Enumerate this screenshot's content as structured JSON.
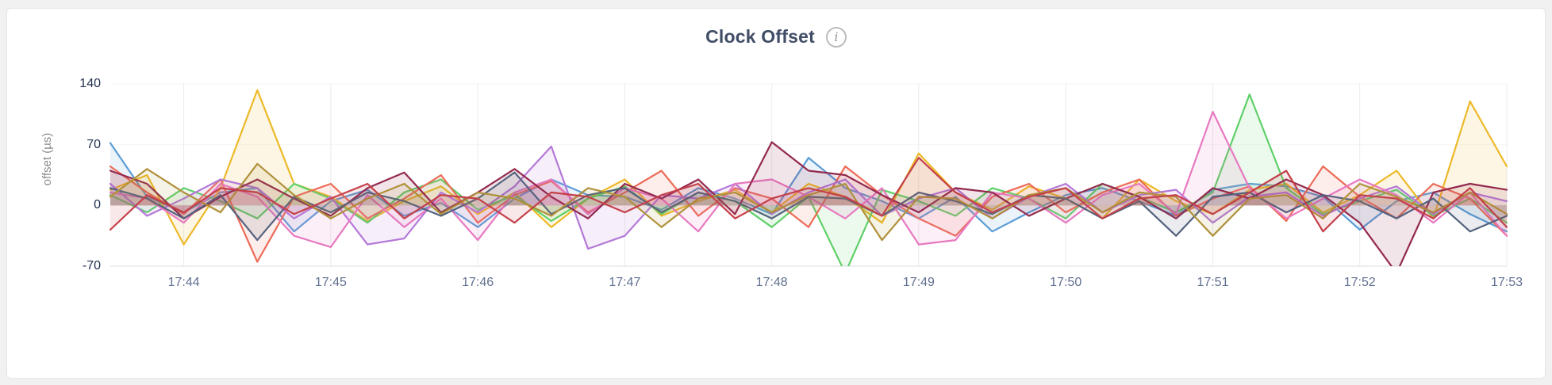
{
  "icons": {
    "info_glyph": "i"
  },
  "colors": {
    "page_bg": "#f2f1f2",
    "card_bg": "#ffffff",
    "title": "#414d66",
    "y_tick_label": "#223050",
    "x_tick_label": "#60708f",
    "grid": "#ebebeb",
    "axis": "#d9dde4"
  },
  "chart_data": {
    "type": "line",
    "title": "Clock Offset",
    "xlabel": "",
    "ylabel": "offset (µs)",
    "ylim": [
      -70,
      140
    ],
    "y_ticks": [
      140,
      70,
      0,
      -70
    ],
    "grid": true,
    "legend": "none",
    "fill_opacity": 0.12,
    "line_width": 2.2,
    "x_ticks": [
      {
        "label": "17:44",
        "index": 2
      },
      {
        "label": "17:45",
        "index": 6
      },
      {
        "label": "17:46",
        "index": 10
      },
      {
        "label": "17:47",
        "index": 14
      },
      {
        "label": "17:48",
        "index": 18
      },
      {
        "label": "17:49",
        "index": 22
      },
      {
        "label": "17:50",
        "index": 26
      },
      {
        "label": "17:51",
        "index": 30
      },
      {
        "label": "17:52",
        "index": 34
      },
      {
        "label": "17:53",
        "index": 38
      }
    ],
    "series": [
      {
        "name": "blue",
        "color": "#5C9DD6",
        "values": [
          72,
          10,
          -8,
          15,
          20,
          -30,
          5,
          18,
          -12,
          3,
          -25,
          8,
          30,
          12,
          10,
          -5,
          20,
          8,
          -10,
          55,
          20,
          5,
          -15,
          10,
          -30,
          -8,
          12,
          20,
          5,
          -12,
          18,
          25,
          22,
          10,
          -28,
          5,
          15,
          -10,
          -30
        ]
      },
      {
        "name": "yellow",
        "color": "#EDB928",
        "values": [
          18,
          35,
          -45,
          20,
          133,
          25,
          10,
          -18,
          5,
          22,
          -10,
          15,
          -25,
          8,
          30,
          -12,
          5,
          18,
          -8,
          25,
          10,
          -20,
          60,
          15,
          -5,
          22,
          8,
          -15,
          30,
          5,
          -10,
          18,
          25,
          -8,
          12,
          40,
          -15,
          120,
          45
        ]
      },
      {
        "name": "green",
        "color": "#5FD068",
        "values": [
          12,
          -8,
          20,
          5,
          -15,
          25,
          8,
          -20,
          15,
          30,
          -5,
          12,
          -18,
          8,
          22,
          -10,
          15,
          5,
          -25,
          10,
          -78,
          18,
          5,
          -12,
          20,
          8,
          -15,
          25,
          10,
          -8,
          15,
          128,
          20,
          -10,
          5,
          18,
          -12,
          8,
          -20
        ]
      },
      {
        "name": "coral",
        "color": "#EC6C57",
        "values": [
          45,
          15,
          -10,
          30,
          -65,
          10,
          25,
          -15,
          8,
          35,
          -20,
          12,
          28,
          -8,
          15,
          40,
          -12,
          20,
          8,
          -25,
          45,
          12,
          -15,
          -35,
          10,
          25,
          -8,
          15,
          30,
          -12,
          8,
          22,
          -18,
          45,
          10,
          -15,
          25,
          8,
          -35
        ]
      },
      {
        "name": "purple",
        "color": "#B478D8",
        "values": [
          25,
          -12,
          8,
          30,
          20,
          -15,
          10,
          -45,
          -38,
          15,
          -8,
          22,
          68,
          -50,
          -35,
          12,
          8,
          25,
          -10,
          15,
          30,
          -12,
          8,
          20,
          -15,
          10,
          25,
          -8,
          12,
          18,
          -20,
          10,
          15,
          -12,
          8,
          22,
          -10,
          15,
          5
        ]
      },
      {
        "name": "pink",
        "color": "#E779C1",
        "values": [
          15,
          8,
          -20,
          25,
          10,
          -35,
          -48,
          12,
          -25,
          8,
          -40,
          15,
          30,
          -10,
          20,
          8,
          -30,
          25,
          30,
          10,
          -15,
          20,
          -45,
          -40,
          15,
          8,
          -20,
          12,
          25,
          -10,
          108,
          20,
          -15,
          8,
          30,
          12,
          -20,
          15,
          -35
        ]
      },
      {
        "name": "maroon",
        "color": "#932A4E",
        "values": [
          40,
          25,
          -15,
          10,
          30,
          8,
          -12,
          20,
          38,
          -8,
          15,
          42,
          10,
          -15,
          25,
          8,
          30,
          -10,
          73,
          40,
          35,
          12,
          -8,
          20,
          15,
          -12,
          8,
          25,
          10,
          -15,
          20,
          8,
          30,
          12,
          -20,
          -78,
          15,
          25,
          18
        ]
      },
      {
        "name": "slate",
        "color": "#54627E",
        "values": [
          20,
          8,
          -15,
          12,
          -40,
          10,
          -8,
          15,
          5,
          -12,
          8,
          38,
          -10,
          12,
          20,
          -8,
          15,
          5,
          -15,
          10,
          8,
          -12,
          15,
          5,
          -10,
          12,
          8,
          -15,
          5,
          -35,
          10,
          15,
          -8,
          12,
          5,
          -15,
          8,
          -30,
          -12
        ]
      },
      {
        "name": "olive",
        "color": "#B0913A",
        "values": [
          10,
          42,
          15,
          -8,
          48,
          12,
          -15,
          8,
          25,
          -10,
          15,
          8,
          -12,
          20,
          10,
          -25,
          8,
          15,
          -8,
          12,
          25,
          -40,
          10,
          8,
          -15,
          12,
          20,
          -8,
          15,
          10,
          -35,
          8,
          12,
          -15,
          25,
          10,
          -8,
          15,
          -10
        ]
      },
      {
        "name": "red",
        "color": "#C4404A",
        "values": [
          -28,
          12,
          -8,
          20,
          15,
          -10,
          8,
          25,
          -15,
          12,
          8,
          -20,
          15,
          10,
          -8,
          12,
          25,
          -15,
          8,
          20,
          10,
          -12,
          55,
          15,
          -8,
          10,
          20,
          -15,
          8,
          12,
          -10,
          15,
          40,
          -30,
          12,
          8,
          -15,
          20,
          -25
        ]
      }
    ]
  }
}
